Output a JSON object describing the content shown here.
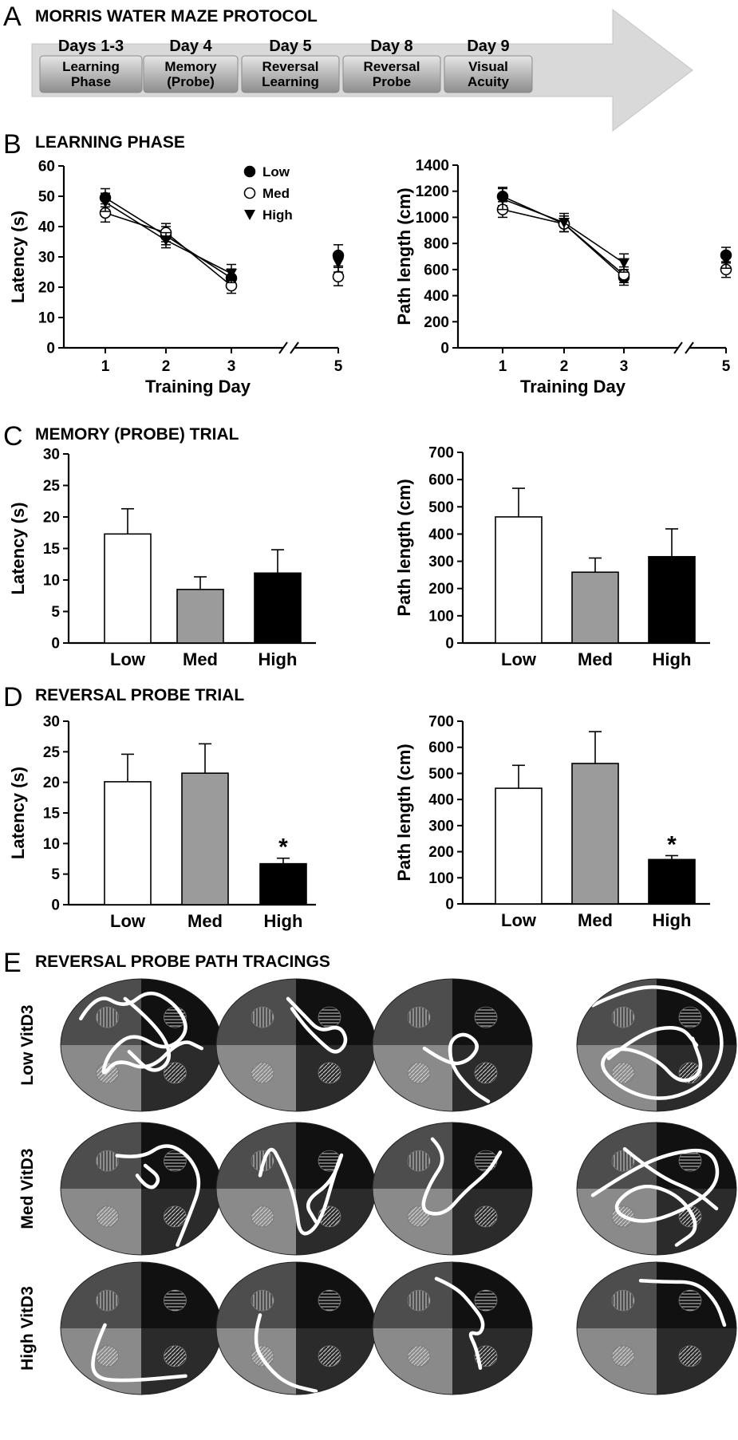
{
  "panels": {
    "A": {
      "letter": "A",
      "title": "MORRIS WATER MAZE PROTOCOL",
      "steps": [
        {
          "day": "Days 1-3",
          "lines": [
            "Learning",
            "Phase"
          ]
        },
        {
          "day": "Day 4",
          "lines": [
            "Memory",
            "(Probe)"
          ]
        },
        {
          "day": "Day 5",
          "lines": [
            "Reversal",
            "Learning"
          ]
        },
        {
          "day": "Day 8",
          "lines": [
            "Reversal",
            "Probe"
          ]
        },
        {
          "day": "Day 9",
          "lines": [
            "Visual",
            "Acuity"
          ]
        }
      ]
    },
    "B": {
      "letter": "B",
      "title": "LEARNING PHASE"
    },
    "C": {
      "letter": "C",
      "title": "MEMORY (PROBE) TRIAL"
    },
    "D": {
      "letter": "D",
      "title": "REVERSAL PROBE TRIAL"
    },
    "E": {
      "letter": "E",
      "title": "REVERSAL PROBE PATH TRACINGS",
      "rows": [
        "Low VitD3",
        "Med VitD3",
        "High VitD3"
      ]
    }
  },
  "chart_data": [
    {
      "id": "B-latency",
      "type": "line",
      "xlabel": "Training Day",
      "ylabel": "Latency (s)",
      "x": [
        1,
        2,
        3,
        5
      ],
      "xticks": [
        "1",
        "2",
        "3",
        "5"
      ],
      "axis_break": "between 3 and 5",
      "ylim": [
        0,
        60
      ],
      "yticks": [
        0,
        10,
        20,
        30,
        40,
        50,
        60
      ],
      "legend_position": "top-right",
      "series": [
        {
          "name": "Low",
          "marker": "filled-circle",
          "values": [
            49.5,
            37,
            23,
            30.5
          ],
          "errors": [
            3,
            3,
            3,
            3.5
          ]
        },
        {
          "name": "Med",
          "marker": "open-circle",
          "values": [
            44.5,
            38,
            20.5,
            23.5
          ],
          "errors": [
            3,
            3,
            2.5,
            3
          ]
        },
        {
          "name": "High",
          "marker": "filled-triangle",
          "values": [
            48,
            35.5,
            24.5,
            28
          ],
          "errors": [
            3,
            2.5,
            3,
            3
          ]
        }
      ]
    },
    {
      "id": "B-path",
      "type": "line",
      "xlabel": "Training Day",
      "ylabel": "Path length (cm)",
      "x": [
        1,
        2,
        3,
        5
      ],
      "xticks": [
        "1",
        "2",
        "3",
        "5"
      ],
      "axis_break": "between 3 and 5",
      "ylim": [
        0,
        1400
      ],
      "yticks": [
        0,
        200,
        400,
        600,
        800,
        1000,
        1200,
        1400
      ],
      "series": [
        {
          "name": "Low",
          "marker": "filled-circle",
          "values": [
            1160,
            950,
            540,
            710
          ],
          "errors": [
            70,
            60,
            60,
            60
          ]
        },
        {
          "name": "Med",
          "marker": "open-circle",
          "values": [
            1060,
            950,
            560,
            600
          ],
          "errors": [
            60,
            60,
            60,
            60
          ]
        },
        {
          "name": "High",
          "marker": "filled-triangle",
          "values": [
            1140,
            960,
            650,
            670
          ],
          "errors": [
            80,
            70,
            70,
            60
          ]
        }
      ]
    },
    {
      "id": "C-latency",
      "type": "bar",
      "categories": [
        "Low",
        "Med",
        "High"
      ],
      "ylabel": "Latency (s)",
      "ylim": [
        0,
        30
      ],
      "yticks": [
        0,
        5,
        10,
        15,
        20,
        25,
        30
      ],
      "values": [
        17.3,
        8.5,
        11.1
      ],
      "errors": [
        4,
        2,
        3.7
      ],
      "colors": [
        "#ffffff",
        "#9b9b9b",
        "#000000"
      ]
    },
    {
      "id": "C-path",
      "type": "bar",
      "categories": [
        "Low",
        "Med",
        "High"
      ],
      "ylabel": "Path length (cm)",
      "ylim": [
        0,
        700
      ],
      "yticks": [
        0,
        100,
        200,
        300,
        400,
        500,
        600,
        700
      ],
      "values": [
        463,
        260,
        317
      ],
      "errors": [
        105,
        52,
        102
      ],
      "colors": [
        "#ffffff",
        "#9b9b9b",
        "#000000"
      ]
    },
    {
      "id": "D-latency",
      "type": "bar",
      "categories": [
        "Low",
        "Med",
        "High"
      ],
      "ylabel": "Latency (s)",
      "ylim": [
        0,
        30
      ],
      "yticks": [
        0,
        5,
        10,
        15,
        20,
        25,
        30
      ],
      "values": [
        20.1,
        21.5,
        6.7
      ],
      "errors": [
        4.5,
        4.8,
        0.9
      ],
      "colors": [
        "#ffffff",
        "#9b9b9b",
        "#000000"
      ],
      "annotations": [
        {
          "category": "High",
          "text": "*"
        }
      ]
    },
    {
      "id": "D-path",
      "type": "bar",
      "categories": [
        "Low",
        "Med",
        "High"
      ],
      "ylabel": "Path length (cm)",
      "ylim": [
        0,
        700
      ],
      "yticks": [
        0,
        100,
        200,
        300,
        400,
        500,
        600,
        700
      ],
      "values": [
        443,
        538,
        170
      ],
      "errors": [
        88,
        122,
        15
      ],
      "colors": [
        "#ffffff",
        "#9b9b9b",
        "#000000"
      ],
      "annotations": [
        {
          "category": "High",
          "text": "*"
        }
      ]
    }
  ]
}
